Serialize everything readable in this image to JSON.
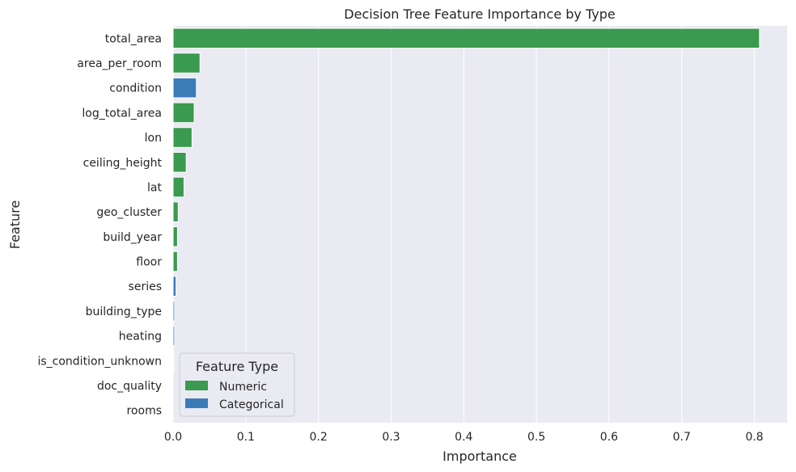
{
  "chart_data": {
    "type": "bar",
    "orientation": "horizontal",
    "title": "Decision Tree Feature Importance by Type",
    "xlabel": "Importance",
    "ylabel": "Feature",
    "xlim": [
      0,
      0.845
    ],
    "xticks": [
      "0.0",
      "0.1",
      "0.2",
      "0.3",
      "0.4",
      "0.5",
      "0.6",
      "0.7",
      "0.8"
    ],
    "grid": true,
    "legend": {
      "title": "Feature Type",
      "placement": "lower-left",
      "entries": [
        {
          "name": "Numeric",
          "color": "#3a9a4f"
        },
        {
          "name": "Categorical",
          "color": "#3b7cb8"
        }
      ]
    },
    "bars": [
      {
        "feature": "total_area",
        "value": 0.807,
        "type": "Numeric"
      },
      {
        "feature": "area_per_room",
        "value": 0.037,
        "type": "Numeric"
      },
      {
        "feature": "condition",
        "value": 0.032,
        "type": "Categorical"
      },
      {
        "feature": "log_total_area",
        "value": 0.029,
        "type": "Numeric"
      },
      {
        "feature": "lon",
        "value": 0.026,
        "type": "Numeric"
      },
      {
        "feature": "ceiling_height",
        "value": 0.018,
        "type": "Numeric"
      },
      {
        "feature": "lat",
        "value": 0.015,
        "type": "Numeric"
      },
      {
        "feature": "geo_cluster",
        "value": 0.007,
        "type": "Numeric"
      },
      {
        "feature": "build_year",
        "value": 0.006,
        "type": "Numeric"
      },
      {
        "feature": "floor",
        "value": 0.006,
        "type": "Numeric"
      },
      {
        "feature": "series",
        "value": 0.004,
        "type": "Categorical"
      },
      {
        "feature": "building_type",
        "value": 0.002,
        "type": "Categorical"
      },
      {
        "feature": "heating",
        "value": 0.002,
        "type": "Categorical"
      },
      {
        "feature": "is_condition_unknown",
        "value": 0.001,
        "type": "Numeric"
      },
      {
        "feature": "doc_quality",
        "value": 0.0,
        "type": "Categorical"
      },
      {
        "feature": "rooms",
        "value": 0.0,
        "type": "Numeric"
      }
    ]
  }
}
